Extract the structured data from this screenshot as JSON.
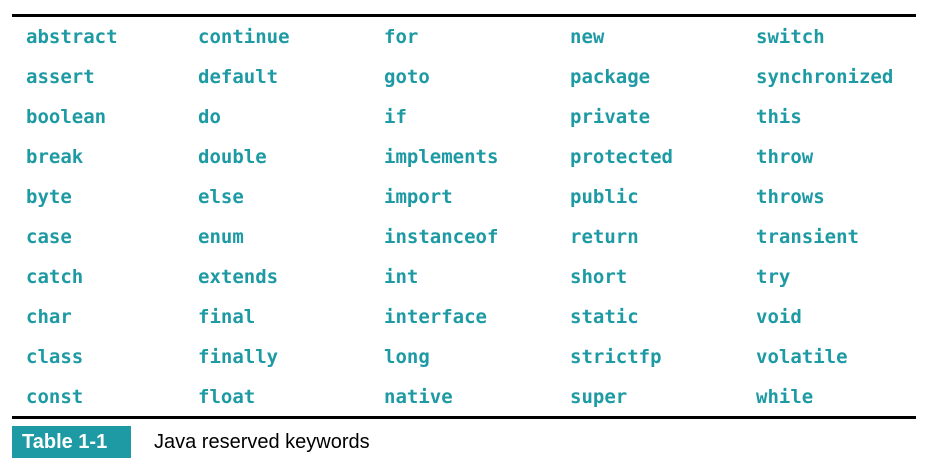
{
  "table": {
    "columns": [
      [
        "abstract",
        "assert",
        "boolean",
        "break",
        "byte",
        "case",
        "catch",
        "char",
        "class",
        "const"
      ],
      [
        "continue",
        "default",
        "do",
        "double",
        "else",
        "enum",
        "extends",
        "final",
        "finally",
        "float"
      ],
      [
        "for",
        "goto",
        "if",
        "implements",
        "import",
        "instanceof",
        "int",
        "interface",
        "long",
        "native"
      ],
      [
        "new",
        "package",
        "private",
        "protected",
        "public",
        "return",
        "short",
        "static",
        "strictfp",
        "super"
      ],
      [
        "switch",
        "synchronized",
        "this",
        "throw",
        "throws",
        "transient",
        "try",
        "void",
        "volatile",
        "while"
      ]
    ]
  },
  "caption": {
    "label": "Table 1-1",
    "text": "Java reserved keywords"
  },
  "colors": {
    "keyword": "#1e9aa5",
    "label_background": "#1e9aa5",
    "rule": "#000000"
  }
}
